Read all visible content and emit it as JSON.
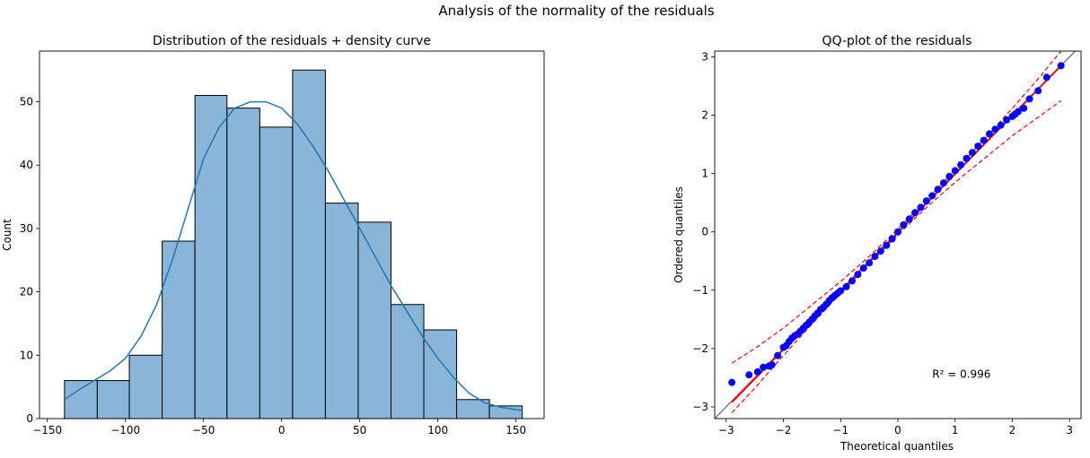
{
  "figure": {
    "suptitle": "Analysis of the normality of the residuals"
  },
  "chart_data": [
    {
      "type": "bar",
      "title": "Distribution of the residuals + density curve",
      "xlabel": "",
      "ylabel": "Count",
      "xlim": [
        -155,
        168
      ],
      "ylim": [
        0,
        58
      ],
      "xticks": [
        -150,
        -100,
        -50,
        0,
        50,
        100,
        150
      ],
      "yticks": [
        0,
        10,
        20,
        30,
        40,
        50
      ],
      "bin_edges": [
        -139,
        -118,
        -97.5,
        -76.5,
        -55.5,
        -35,
        -14,
        7,
        28,
        49,
        70,
        91,
        112,
        133,
        154
      ],
      "counts": [
        6,
        6,
        10,
        28,
        51,
        49,
        46,
        55,
        34,
        31,
        18,
        14,
        3,
        2
      ],
      "bar_color": "#89b5d8",
      "edge_color": "#000000",
      "density_curve": {
        "color": "#1f77b4",
        "x": [
          -139,
          -130,
          -120,
          -110,
          -100,
          -90,
          -80,
          -70,
          -60,
          -50,
          -40,
          -30,
          -20,
          -10,
          0,
          10,
          20,
          30,
          40,
          50,
          60,
          70,
          80,
          90,
          100,
          110,
          120,
          130,
          140,
          150,
          154
        ],
        "y": [
          3,
          4.5,
          6,
          7.5,
          9.5,
          13,
          18,
          25,
          33,
          41,
          46,
          49,
          50,
          50,
          49,
          46.5,
          43,
          39,
          34.5,
          30,
          25.5,
          21,
          17,
          13,
          9.5,
          6.5,
          4,
          2.5,
          1.8,
          1.4,
          1.3
        ]
      }
    },
    {
      "type": "scatter",
      "title": "QQ-plot of the residuals",
      "xlabel": "Theoretical quantiles",
      "ylabel": "Ordered quantiles",
      "xlim": [
        -3.2,
        3.2
      ],
      "ylim": [
        -3.2,
        3.1
      ],
      "xticks": [
        -3,
        -2,
        -1,
        0,
        1,
        2,
        3
      ],
      "yticks": [
        -3,
        -2,
        -1,
        0,
        1,
        2,
        3
      ],
      "annotation": {
        "text": "R² = 0.996",
        "x": 0.6,
        "y": -2.5
      },
      "marker_color": "#0000ff",
      "fit_color": "#ff0000",
      "reference_color": "#808080",
      "series": [
        {
          "type": "points",
          "x": [
            -2.9,
            -2.6,
            -2.45,
            -2.35,
            -2.25,
            -2.2,
            -2.1,
            -2.0,
            -1.95,
            -1.9,
            -1.85,
            -1.8,
            -1.75,
            -1.7,
            -1.65,
            -1.6,
            -1.55,
            -1.5,
            -1.45,
            -1.4,
            -1.35,
            -1.3,
            -1.25,
            -1.2,
            -1.15,
            -1.1,
            -1.05,
            -1.0,
            -0.9,
            -0.8,
            -0.7,
            -0.6,
            -0.5,
            -0.4,
            -0.3,
            -0.2,
            -0.1,
            0.0,
            0.1,
            0.2,
            0.3,
            0.4,
            0.5,
            0.6,
            0.7,
            0.8,
            0.9,
            1.0,
            1.1,
            1.2,
            1.3,
            1.4,
            1.5,
            1.6,
            1.7,
            1.8,
            1.9,
            2.0,
            2.05,
            2.1,
            2.2,
            2.3,
            2.45,
            2.6,
            2.85
          ],
          "y": [
            -2.58,
            -2.45,
            -2.4,
            -2.32,
            -2.3,
            -2.28,
            -2.12,
            -1.98,
            -1.95,
            -1.88,
            -1.82,
            -1.78,
            -1.75,
            -1.7,
            -1.65,
            -1.6,
            -1.55,
            -1.5,
            -1.44,
            -1.39,
            -1.33,
            -1.29,
            -1.24,
            -1.18,
            -1.13,
            -1.09,
            -1.05,
            -1.01,
            -0.94,
            -0.84,
            -0.73,
            -0.62,
            -0.53,
            -0.42,
            -0.33,
            -0.23,
            -0.12,
            0.0,
            0.12,
            0.22,
            0.33,
            0.42,
            0.53,
            0.62,
            0.73,
            0.84,
            0.95,
            1.05,
            1.15,
            1.26,
            1.36,
            1.47,
            1.57,
            1.68,
            1.76,
            1.83,
            1.92,
            1.98,
            2.02,
            2.06,
            2.12,
            2.28,
            2.42,
            2.65,
            2.85
          ]
        },
        {
          "type": "fit_line",
          "x": [
            -2.9,
            2.85
          ],
          "y": [
            -2.92,
            2.85
          ]
        },
        {
          "type": "confidence_upper",
          "x": [
            -2.9,
            -2.5,
            -2.0,
            -1.5,
            -1.0,
            -0.5,
            0.0,
            0.5,
            1.0,
            1.5,
            2.0,
            2.5,
            2.85
          ],
          "y": [
            -2.25,
            -2.0,
            -1.65,
            -1.25,
            -0.85,
            -0.42,
            0.05,
            0.55,
            1.05,
            1.58,
            2.12,
            2.68,
            3.1
          ]
        },
        {
          "type": "confidence_lower",
          "x": [
            -2.9,
            -2.5,
            -2.0,
            -1.5,
            -1.0,
            -0.5,
            0.0,
            0.5,
            1.0,
            1.5,
            2.0,
            2.5,
            2.85
          ],
          "y": [
            -3.1,
            -2.68,
            -2.12,
            -1.58,
            -1.05,
            -0.55,
            -0.05,
            0.42,
            0.85,
            1.25,
            1.65,
            2.0,
            2.25
          ]
        }
      ]
    }
  ]
}
